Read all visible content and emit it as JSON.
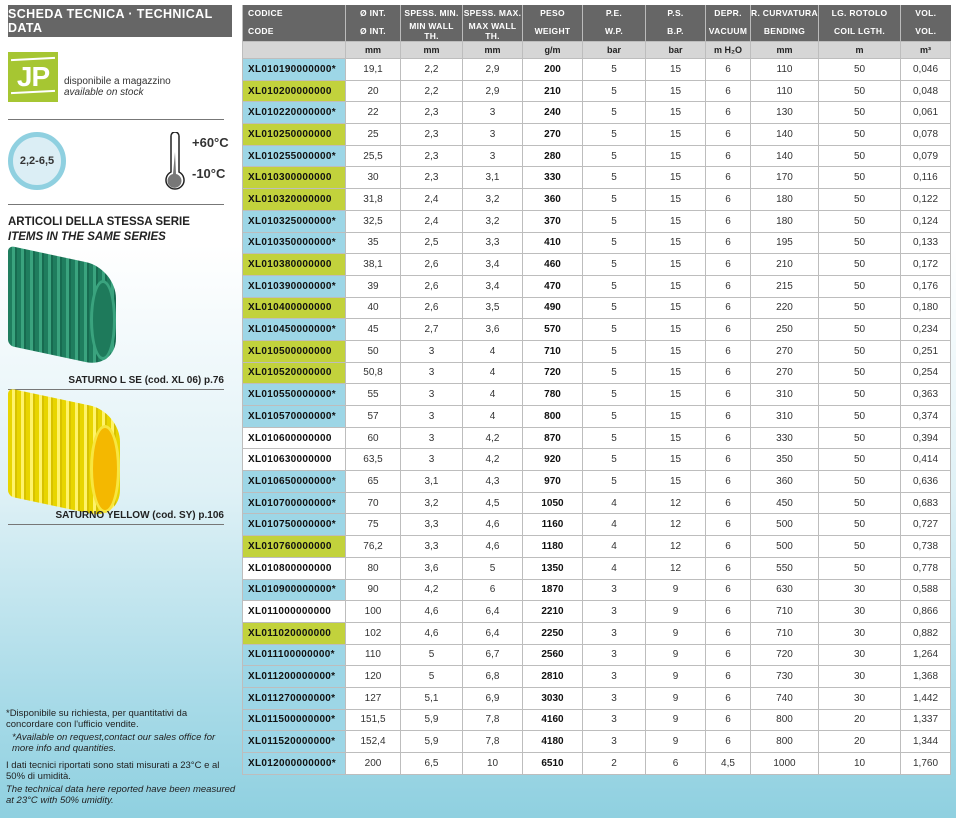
{
  "sidebar": {
    "title": "SCHEDA TECNICA · TECHNICAL DATA",
    "stock_logo": "JP",
    "stock_it": "disponibile a magazzino",
    "stock_en": "available on stock",
    "thickness_range": "2,2-6,5",
    "temp_max": "+60°C",
    "temp_min": "-10°C",
    "series_it": "ARTICOLI DELLA STESSA SERIE",
    "series_en": "ITEMS IN THE SAME SERIES",
    "related": [
      {
        "caption": "SATURNO L SE  (cod. XL 06) p.76",
        "color": "#2a8f6b"
      },
      {
        "caption": "SATURNO YELLOW  (cod. SY) p.106",
        "color": "#f2df10"
      }
    ],
    "note1_it": "*Disponibile su richiesta, per quantitativi da concordare con l'ufficio vendite.",
    "note1_en": "*Available on request,contact our sales office for more info and quantities.",
    "note2_it": "I dati tecnici riportati sono stati misurati a 23°C e al 50% di umidità.",
    "note2_en": "The technical data here reported have been measured at 23°C with 50% umidity."
  },
  "colors": {
    "green": "#c2d23c",
    "blue": "#9dd6e6",
    "header": "#666666"
  },
  "table": {
    "headers_it": [
      "CODICE",
      "Ø INT.",
      "SPESS. MIN.",
      "SPESS. MAX.",
      "PESO",
      "P.E.",
      "P.S.",
      "DEPR.",
      "R. CURVATURA",
      "LG. ROTOLO",
      "VOL."
    ],
    "headers_en": [
      "CODE",
      "Ø INT.",
      "MIN WALL TH.",
      "MAX WALL TH.",
      "WEIGHT",
      "W.P.",
      "B.P.",
      "VACUUM",
      "BENDING",
      "COIL LGTH.",
      "VOL."
    ],
    "units": [
      "",
      "mm",
      "mm",
      "mm",
      "g/m",
      "bar",
      "bar",
      "m H₂O",
      "mm",
      "m",
      "m³"
    ],
    "rows": [
      {
        "hl": "blue",
        "c": [
          "XL010190000000*",
          "19,1",
          "2,2",
          "2,9",
          "200",
          "5",
          "15",
          "6",
          "110",
          "50",
          "0,046"
        ]
      },
      {
        "hl": "green",
        "c": [
          "XL010200000000",
          "20",
          "2,2",
          "2,9",
          "210",
          "5",
          "15",
          "6",
          "110",
          "50",
          "0,048"
        ]
      },
      {
        "hl": "blue",
        "c": [
          "XL010220000000*",
          "22",
          "2,3",
          "3",
          "240",
          "5",
          "15",
          "6",
          "130",
          "50",
          "0,061"
        ]
      },
      {
        "hl": "green",
        "c": [
          "XL010250000000",
          "25",
          "2,3",
          "3",
          "270",
          "5",
          "15",
          "6",
          "140",
          "50",
          "0,078"
        ]
      },
      {
        "hl": "blue",
        "c": [
          "XL010255000000*",
          "25,5",
          "2,3",
          "3",
          "280",
          "5",
          "15",
          "6",
          "140",
          "50",
          "0,079"
        ]
      },
      {
        "hl": "green",
        "c": [
          "XL010300000000",
          "30",
          "2,3",
          "3,1",
          "330",
          "5",
          "15",
          "6",
          "170",
          "50",
          "0,116"
        ]
      },
      {
        "hl": "green",
        "c": [
          "XL010320000000",
          "31,8",
          "2,4",
          "3,2",
          "360",
          "5",
          "15",
          "6",
          "180",
          "50",
          "0,122"
        ]
      },
      {
        "hl": "blue",
        "c": [
          "XL010325000000*",
          "32,5",
          "2,4",
          "3,2",
          "370",
          "5",
          "15",
          "6",
          "180",
          "50",
          "0,124"
        ]
      },
      {
        "hl": "blue",
        "c": [
          "XL010350000000*",
          "35",
          "2,5",
          "3,3",
          "410",
          "5",
          "15",
          "6",
          "195",
          "50",
          "0,133"
        ]
      },
      {
        "hl": "green",
        "c": [
          "XL010380000000",
          "38,1",
          "2,6",
          "3,4",
          "460",
          "5",
          "15",
          "6",
          "210",
          "50",
          "0,172"
        ]
      },
      {
        "hl": "blue",
        "c": [
          "XL010390000000*",
          "39",
          "2,6",
          "3,4",
          "470",
          "5",
          "15",
          "6",
          "215",
          "50",
          "0,176"
        ]
      },
      {
        "hl": "green",
        "c": [
          "XL010400000000",
          "40",
          "2,6",
          "3,5",
          "490",
          "5",
          "15",
          "6",
          "220",
          "50",
          "0,180"
        ]
      },
      {
        "hl": "blue",
        "c": [
          "XL010450000000*",
          "45",
          "2,7",
          "3,6",
          "570",
          "5",
          "15",
          "6",
          "250",
          "50",
          "0,234"
        ]
      },
      {
        "hl": "green",
        "c": [
          "XL010500000000",
          "50",
          "3",
          "4",
          "710",
          "5",
          "15",
          "6",
          "270",
          "50",
          "0,251"
        ]
      },
      {
        "hl": "green",
        "c": [
          "XL010520000000",
          "50,8",
          "3",
          "4",
          "720",
          "5",
          "15",
          "6",
          "270",
          "50",
          "0,254"
        ]
      },
      {
        "hl": "blue",
        "c": [
          "XL010550000000*",
          "55",
          "3",
          "4",
          "780",
          "5",
          "15",
          "6",
          "310",
          "50",
          "0,363"
        ]
      },
      {
        "hl": "blue",
        "c": [
          "XL010570000000*",
          "57",
          "3",
          "4",
          "800",
          "5",
          "15",
          "6",
          "310",
          "50",
          "0,374"
        ]
      },
      {
        "hl": "none",
        "c": [
          "XL010600000000",
          "60",
          "3",
          "4,2",
          "870",
          "5",
          "15",
          "6",
          "330",
          "50",
          "0,394"
        ]
      },
      {
        "hl": "none",
        "c": [
          "XL010630000000",
          "63,5",
          "3",
          "4,2",
          "920",
          "5",
          "15",
          "6",
          "350",
          "50",
          "0,414"
        ]
      },
      {
        "hl": "blue",
        "c": [
          "XL010650000000*",
          "65",
          "3,1",
          "4,3",
          "970",
          "5",
          "15",
          "6",
          "360",
          "50",
          "0,636"
        ]
      },
      {
        "hl": "blue",
        "c": [
          "XL010700000000*",
          "70",
          "3,2",
          "4,5",
          "1050",
          "4",
          "12",
          "6",
          "450",
          "50",
          "0,683"
        ]
      },
      {
        "hl": "blue",
        "c": [
          "XL010750000000*",
          "75",
          "3,3",
          "4,6",
          "1160",
          "4",
          "12",
          "6",
          "500",
          "50",
          "0,727"
        ]
      },
      {
        "hl": "green",
        "c": [
          "XL010760000000",
          "76,2",
          "3,3",
          "4,6",
          "1180",
          "4",
          "12",
          "6",
          "500",
          "50",
          "0,738"
        ]
      },
      {
        "hl": "none",
        "c": [
          "XL010800000000",
          "80",
          "3,6",
          "5",
          "1350",
          "4",
          "12",
          "6",
          "550",
          "50",
          "0,778"
        ]
      },
      {
        "hl": "blue",
        "c": [
          "XL010900000000*",
          "90",
          "4,2",
          "6",
          "1870",
          "3",
          "9",
          "6",
          "630",
          "30",
          "0,588"
        ]
      },
      {
        "hl": "none",
        "c": [
          "XL011000000000",
          "100",
          "4,6",
          "6,4",
          "2210",
          "3",
          "9",
          "6",
          "710",
          "30",
          "0,866"
        ]
      },
      {
        "hl": "green",
        "c": [
          "XL011020000000",
          "102",
          "4,6",
          "6,4",
          "2250",
          "3",
          "9",
          "6",
          "710",
          "30",
          "0,882"
        ]
      },
      {
        "hl": "blue",
        "c": [
          "XL011100000000*",
          "110",
          "5",
          "6,7",
          "2560",
          "3",
          "9",
          "6",
          "720",
          "30",
          "1,264"
        ]
      },
      {
        "hl": "blue",
        "c": [
          "XL011200000000*",
          "120",
          "5",
          "6,8",
          "2810",
          "3",
          "9",
          "6",
          "730",
          "30",
          "1,368"
        ]
      },
      {
        "hl": "blue",
        "c": [
          "XL011270000000*",
          "127",
          "5,1",
          "6,9",
          "3030",
          "3",
          "9",
          "6",
          "740",
          "30",
          "1,442"
        ]
      },
      {
        "hl": "blue",
        "c": [
          "XL011500000000*",
          "151,5",
          "5,9",
          "7,8",
          "4160",
          "3",
          "9",
          "6",
          "800",
          "20",
          "1,337"
        ]
      },
      {
        "hl": "blue",
        "c": [
          "XL011520000000*",
          "152,4",
          "5,9",
          "7,8",
          "4180",
          "3",
          "9",
          "6",
          "800",
          "20",
          "1,344"
        ]
      },
      {
        "hl": "blue",
        "c": [
          "XL012000000000*",
          "200",
          "6,5",
          "10",
          "6510",
          "2",
          "6",
          "4,5",
          "1000",
          "10",
          "1,760"
        ]
      }
    ]
  }
}
